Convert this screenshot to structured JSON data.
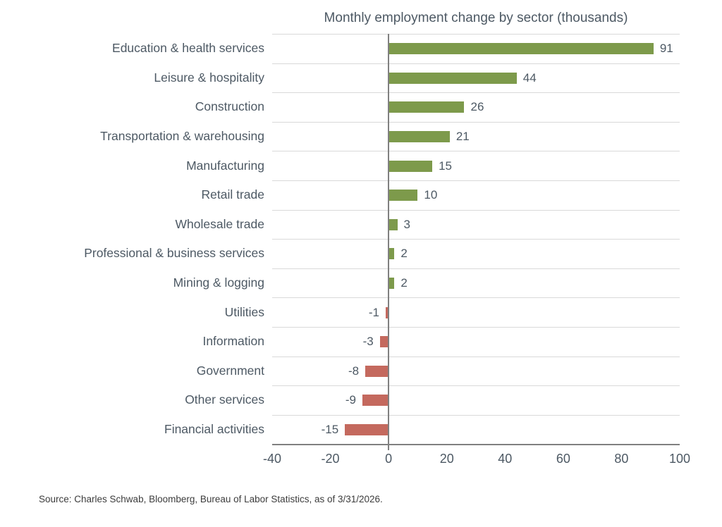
{
  "source": "Source: Charles Schwab, Bloomberg, Bureau of Labor Statistics, as of 3/31/2026.",
  "colors": {
    "positive_bar": "#7d9a4b",
    "negative_bar": "#c4695e",
    "gridline": "#d9d9d9",
    "axis": "#808080",
    "text": "#4d5964",
    "source_text": "#3c3c3c"
  },
  "chart_data": {
    "type": "bar",
    "orientation": "horizontal",
    "title": "Monthly employment change by sector (thousands)",
    "xlabel": "",
    "ylabel": "",
    "categories": [
      "Education & health services",
      "Leisure & hospitality",
      "Construction",
      "Transportation & warehousing",
      "Manufacturing",
      "Retail trade",
      "Wholesale trade",
      "Professional & business services",
      "Mining & logging",
      "Utilities",
      "Information",
      "Government",
      "Other services",
      "Financial activities"
    ],
    "values": [
      91,
      44,
      26,
      21,
      15,
      10,
      3,
      2,
      2,
      -1,
      -3,
      -8,
      -9,
      -15
    ],
    "xlim": [
      -40,
      100
    ],
    "xticks": [
      -40,
      -20,
      0,
      20,
      40,
      60,
      80,
      100
    ],
    "grid": "row-separator horizontal gridlines",
    "legend": "none",
    "value_labels": "at bar ends, negative labels left of bars"
  }
}
